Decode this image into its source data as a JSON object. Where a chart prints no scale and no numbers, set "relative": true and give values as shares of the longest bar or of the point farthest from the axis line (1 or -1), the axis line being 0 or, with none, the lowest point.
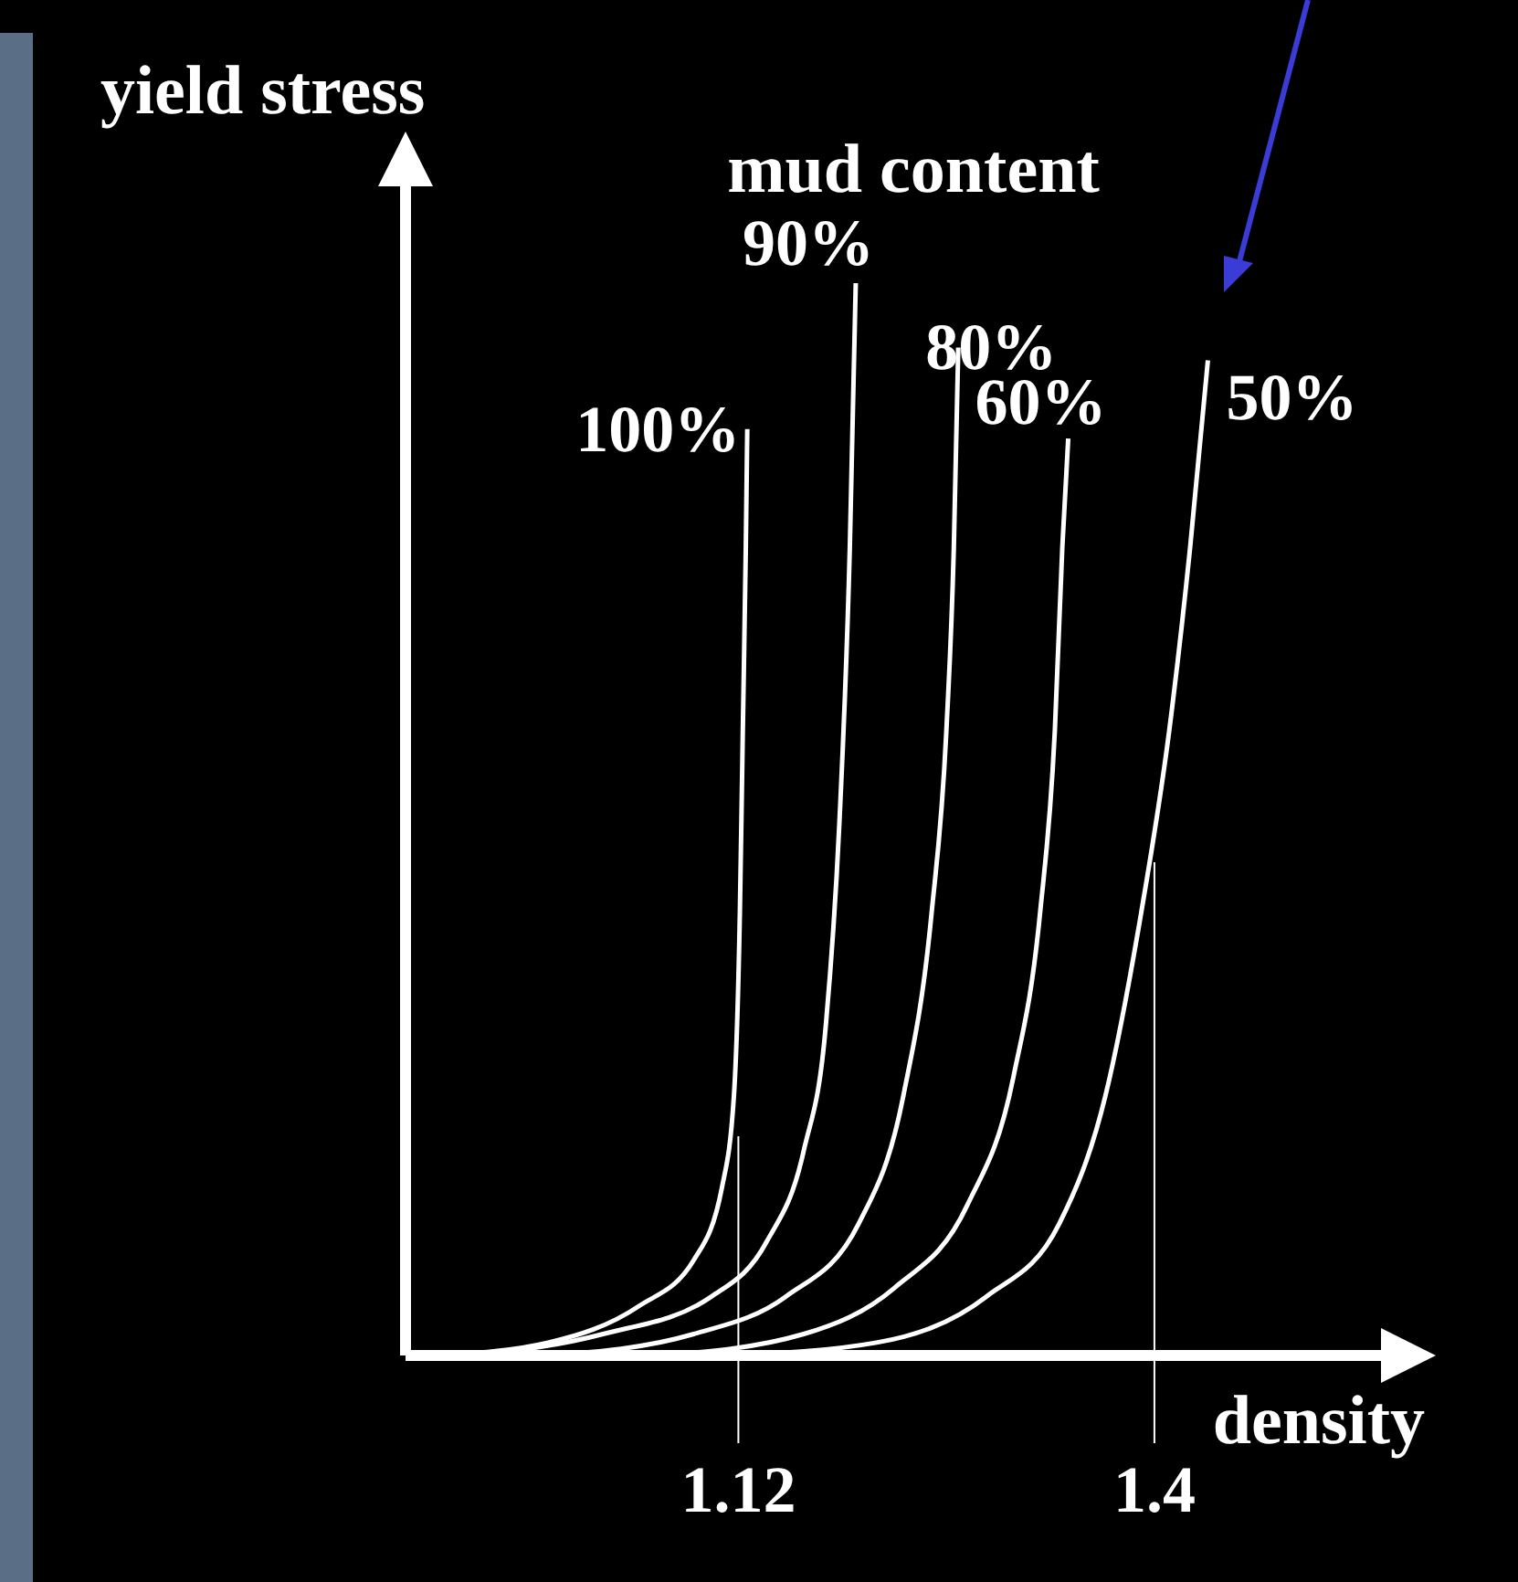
{
  "chart_data": {
    "type": "line",
    "xlabel": "density",
    "ylabel": "yield stress",
    "legend_title": "mud content",
    "relative": true,
    "xlim": [
      0.896,
      1.582
    ],
    "xticks": [
      1.12,
      1.4
    ],
    "ref_lines": [
      {
        "axis": "x",
        "value": 1.12,
        "color": "#ffffff"
      },
      {
        "axis": "x",
        "value": 1.4,
        "color": "#ffffff"
      }
    ],
    "series": [
      {
        "name": "100%",
        "color": "#ffffff",
        "x": [
          0.918,
          0.992,
          1.053,
          1.09,
          1.109,
          1.117,
          1.121,
          1.123,
          1.125,
          1.126
        ],
        "values": [
          0,
          0.012,
          0.046,
          0.089,
          0.157,
          0.242,
          0.412,
          0.583,
          0.753,
          0.864
        ]
      },
      {
        "name": "90%",
        "color": "#ffffff",
        "x": [
          0.943,
          1.029,
          1.102,
          1.139,
          1.164,
          1.179,
          1.188,
          1.195,
          1.199
        ],
        "values": [
          0,
          0.02,
          0.055,
          0.106,
          0.191,
          0.31,
          0.497,
          0.753,
          1
        ]
      },
      {
        "name": "80%",
        "color": "#ffffff",
        "x": [
          0.992,
          1.09,
          1.152,
          1.201,
          1.231,
          1.25,
          1.26,
          1.265,
          1.268
        ],
        "values": [
          0,
          0.02,
          0.055,
          0.123,
          0.242,
          0.412,
          0.583,
          0.753,
          0.94
        ]
      },
      {
        "name": "60%",
        "color": "#ffffff",
        "x": [
          1.066,
          1.164,
          1.225,
          1.274,
          1.305,
          1.323,
          1.333,
          1.338,
          1.342
        ],
        "values": [
          0,
          0.02,
          0.063,
          0.14,
          0.259,
          0.412,
          0.583,
          0.753,
          0.855
        ]
      },
      {
        "name": "50%",
        "color": "#ffffff",
        "x": [
          1.115,
          1.213,
          1.287,
          1.336,
          1.367,
          1.391,
          1.41,
          1.424,
          1.436
        ],
        "values": [
          0,
          0.012,
          0.055,
          0.123,
          0.242,
          0.412,
          0.583,
          0.753,
          0.928
        ]
      }
    ]
  }
}
